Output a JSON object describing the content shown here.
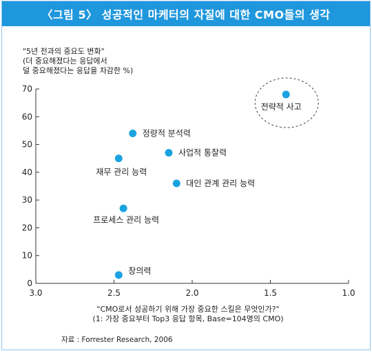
{
  "figure": {
    "title": "〈그림 5〉 성공적인 마케터의 자질에 대한 CMO들의 생각",
    "source": "자료 : Forrester Research, 2006"
  },
  "chart_data": {
    "type": "scatter",
    "title": "〈그림 5〉 성공적인 마케터의 자질에 대한 CMO들의 생각",
    "ylabel_lines": [
      "\"5년 전과의 중요도 변화\"",
      "(더 중요해졌다는 응답에서",
      "덜 중요해졌다는 응답을 차감한 %)"
    ],
    "xlabel_lines": [
      "\"CMO로서 성공하기 위해 가장 중요한 스킬은 무엇인가?\"",
      "(1: 가장 중요부터 Top3 응답 항목, Base=104명의 CMO)"
    ],
    "xlim": [
      3.0,
      1.0
    ],
    "x_reversed": true,
    "ylim": [
      0,
      70
    ],
    "x_ticks": [
      "3.0",
      "2.5",
      "2.0",
      "1.5",
      "1.0"
    ],
    "x_tick_values": [
      3.0,
      2.5,
      2.0,
      1.5,
      1.0
    ],
    "y_ticks": [
      "0",
      "10",
      "20",
      "30",
      "40",
      "50",
      "60",
      "70"
    ],
    "y_tick_values": [
      0,
      10,
      20,
      30,
      40,
      50,
      60,
      70
    ],
    "grid": false,
    "marker_color": "#1ba3e0",
    "highlight": "전략적 사고",
    "points": [
      {
        "label": "전략적 사고",
        "x": 1.4,
        "y": 68
      },
      {
        "label": "정량적 분석력",
        "x": 2.38,
        "y": 54
      },
      {
        "label": "사업적 통찰력",
        "x": 2.15,
        "y": 47
      },
      {
        "label": "재무 관리 능력",
        "x": 2.47,
        "y": 45
      },
      {
        "label": "대인 관계 관리 능력",
        "x": 2.1,
        "y": 36
      },
      {
        "label": "프로세스 관리 능력",
        "x": 2.44,
        "y": 27
      },
      {
        "label": "창의력",
        "x": 2.47,
        "y": 3
      }
    ]
  }
}
